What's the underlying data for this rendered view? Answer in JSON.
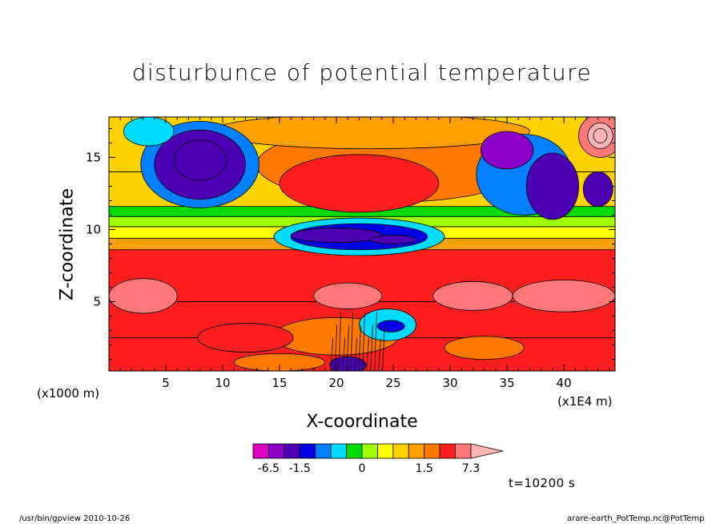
{
  "chart_data": {
    "type": "heatmap",
    "title": "disturbunce of potential temperature",
    "xlabel": "X-coordinate",
    "ylabel": "Z-coordinate",
    "x_unit": "(x1000 m)",
    "x_unit_right": "(x1E4 m)",
    "xlim": [
      0,
      44.5
    ],
    "ylim": [
      0.2,
      17.8
    ],
    "x_ticks": [
      5,
      10,
      15,
      20,
      25,
      30,
      35,
      40
    ],
    "y_ticks": [
      5,
      10,
      15
    ],
    "colorbar": {
      "tick_labels": [
        "-6.5",
        "-1.5",
        "0",
        "1.5",
        "7.3"
      ],
      "tick_values": [
        -6.5,
        -1.5,
        0,
        1.5,
        7.3
      ],
      "levels": [
        -9.5,
        -6.5,
        -4,
        -1.5,
        -1.0,
        -0.6,
        -0.3,
        0,
        0.3,
        0.6,
        1.0,
        1.5,
        3,
        5,
        7.3,
        10
      ],
      "colors": [
        "#e000c0",
        "#8c00c8",
        "#4c00b4",
        "#0000e6",
        "#0080ff",
        "#00dcff",
        "#00dc00",
        "#a0ff00",
        "#ffff00",
        "#ffd200",
        "#ffa000",
        "#ff7800",
        "#ff1e1e",
        "#ff7878",
        "#ffb4b4"
      ]
    },
    "colors": {
      "background": "#ffffff",
      "axis": "#000000",
      "contour": "#000000"
    }
  },
  "annotations": {
    "time": "t=10200 s",
    "footer_left": "/usr/bin/gpview   2010-10-26",
    "footer_right": "arare-earth_PotTemp.nc@PotTemp"
  }
}
